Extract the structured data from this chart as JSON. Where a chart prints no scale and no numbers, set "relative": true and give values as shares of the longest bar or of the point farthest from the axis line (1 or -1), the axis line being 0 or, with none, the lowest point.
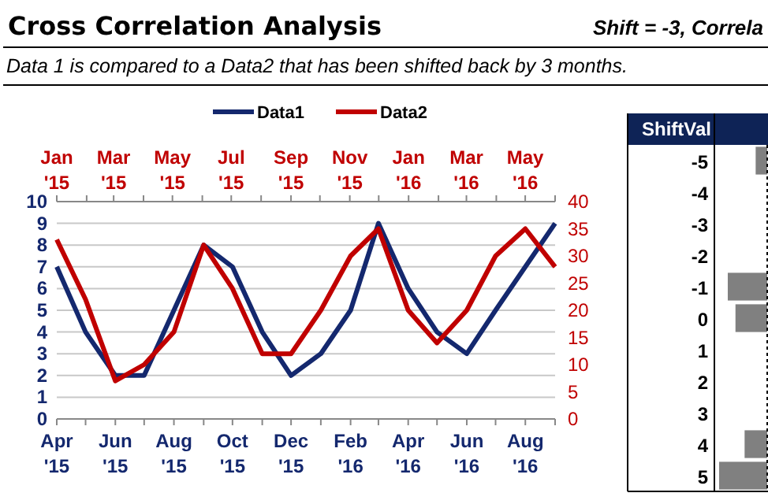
{
  "chart_data": [
    {
      "type": "line",
      "title": "Cross Correlation Analysis",
      "subtitle": "Data 1 is compared to a Data2 that has been shifted back by 3 months.",
      "annotations": [
        "Shift = -3, Correla"
      ],
      "x": [
        "2015-04",
        "2015-05",
        "2015-06",
        "2015-07",
        "2015-08",
        "2015-09",
        "2015-10",
        "2015-11",
        "2015-12",
        "2016-01",
        "2016-02",
        "2016-03",
        "2016-04",
        "2016-05",
        "2016-06",
        "2016-07",
        "2016-08",
        "2016-09"
      ],
      "series": [
        {
          "name": "Data1",
          "color": "#14286e",
          "values": [
            7,
            4,
            2,
            2,
            5,
            8,
            7,
            4,
            2,
            3,
            5,
            9,
            6,
            4,
            3,
            5,
            7,
            9
          ]
        },
        {
          "name": "Data2",
          "color": "#c00000",
          "axis": "y2",
          "values": [
            33,
            22,
            7,
            10,
            16,
            32,
            24,
            12,
            12,
            20,
            30,
            35,
            20,
            14,
            20,
            30,
            35,
            28
          ]
        }
      ],
      "xlim": [
        "2015-04",
        "2016-09"
      ],
      "xticks": [
        {
          "value": "2015-04",
          "label": "Apr '15"
        },
        {
          "value": "2015-05",
          "label": null
        },
        {
          "value": "2015-06",
          "label": "Jun '15"
        },
        {
          "value": "2015-07",
          "label": null
        },
        {
          "value": "2015-08",
          "label": "Aug '15"
        },
        {
          "value": "2015-09",
          "label": null
        },
        {
          "value": "2015-10",
          "label": "Oct '15"
        },
        {
          "value": "2015-11",
          "label": null
        },
        {
          "value": "2015-12",
          "label": "Dec '15"
        },
        {
          "value": "2016-01",
          "label": null
        },
        {
          "value": "2016-02",
          "label": "Feb '16"
        },
        {
          "value": "2016-03",
          "label": null
        },
        {
          "value": "2016-04",
          "label": "Apr '16"
        },
        {
          "value": "2016-05",
          "label": null
        },
        {
          "value": "2016-06",
          "label": "Jun '16"
        },
        {
          "value": "2016-07",
          "label": null
        },
        {
          "value": "2016-08",
          "label": "Aug '16"
        },
        {
          "value": "2016-09",
          "label": null
        }
      ],
      "x2lim": [
        "2015-01",
        "2016-06"
      ],
      "x2ticks": [
        {
          "value": "2015-01",
          "label": "Jan '15"
        },
        {
          "value": "2015-02",
          "label": null
        },
        {
          "value": "2015-03",
          "label": "Mar '15"
        },
        {
          "value": "2015-04",
          "label": null
        },
        {
          "value": "2015-05",
          "label": "May '15"
        },
        {
          "value": "2015-06",
          "label": null
        },
        {
          "value": "2015-07",
          "label": "Jul '15"
        },
        {
          "value": "2015-08",
          "label": null
        },
        {
          "value": "2015-09",
          "label": "Sep '15"
        },
        {
          "value": "2015-10",
          "label": null
        },
        {
          "value": "2015-11",
          "label": "Nov '15"
        },
        {
          "value": "2015-12",
          "label": null
        },
        {
          "value": "2016-01",
          "label": "Jan '16"
        },
        {
          "value": "2016-02",
          "label": null
        },
        {
          "value": "2016-03",
          "label": "Mar '16"
        },
        {
          "value": "2016-04",
          "label": null
        },
        {
          "value": "2016-05",
          "label": "May '16"
        },
        {
          "value": "2016-06",
          "label": null
        }
      ],
      "ylim": [
        0,
        10
      ],
      "yticks": [
        0,
        1,
        2,
        3,
        4,
        5,
        6,
        7,
        8,
        9,
        10
      ],
      "y2lim": [
        0,
        40
      ],
      "y2ticks": [
        0,
        5,
        10,
        15,
        20,
        25,
        30,
        35,
        40
      ],
      "grid": "y",
      "legend": "top"
    },
    {
      "type": "bar",
      "orientation": "horizontal",
      "relative": true,
      "ylabel": "ShiftVal",
      "categories": [
        "-5",
        "-4",
        "-3",
        "-2",
        "-1",
        "0",
        "1",
        "2",
        "3",
        "4",
        "5"
      ],
      "values": [
        -0.24,
        null,
        null,
        null,
        -0.82,
        -0.66,
        null,
        null,
        null,
        -0.47,
        -1
      ],
      "color": "#808080"
    }
  ]
}
